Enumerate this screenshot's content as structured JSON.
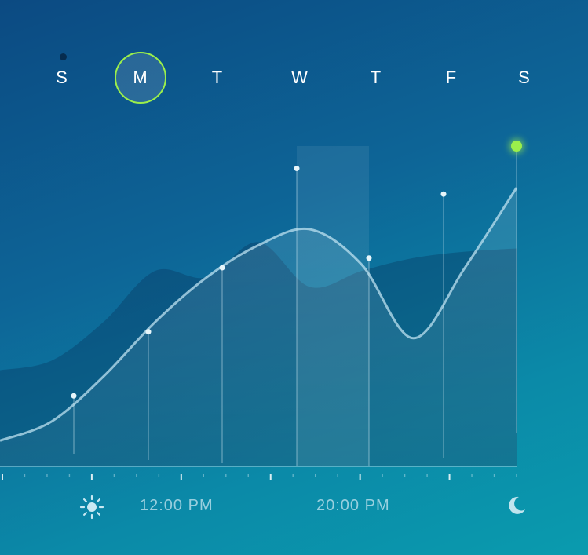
{
  "week": {
    "days": [
      {
        "label": "S",
        "selected": false,
        "has_indicator": true
      },
      {
        "label": "M",
        "selected": true,
        "has_indicator": false
      },
      {
        "label": "T",
        "selected": false,
        "has_indicator": false
      },
      {
        "label": "W",
        "selected": false,
        "has_indicator": false
      },
      {
        "label": "T",
        "selected": false,
        "has_indicator": false
      },
      {
        "label": "F",
        "selected": false,
        "has_indicator": false
      },
      {
        "label": "S",
        "selected": false,
        "has_indicator": false
      }
    ]
  },
  "timeline": {
    "labels": [
      "12:00 PM",
      "20:00 PM"
    ],
    "start_icon": "sun-icon",
    "end_icon": "moon-icon"
  },
  "colors": {
    "accent": "#9bef4b",
    "indicator_dot": "#062c4f"
  },
  "chart_data": {
    "type": "area",
    "title": "",
    "xlabel": "",
    "ylabel": "",
    "series": [
      {
        "values": [
          0.08,
          0.14,
          0.28,
          0.45,
          0.59,
          0.69,
          0.74,
          0.63,
          0.4,
          0.62,
          0.87
        ]
      },
      {
        "values": [
          0.3,
          0.33,
          0.45,
          0.61,
          0.59,
          0.7,
          0.56,
          0.61,
          0.65,
          0.67,
          0.68
        ]
      }
    ],
    "markers": [
      {
        "index": 1,
        "value": 0.22
      },
      {
        "index": 2,
        "value": 0.42
      },
      {
        "index": 3,
        "value": 0.62
      },
      {
        "index": 4,
        "value": 0.93
      },
      {
        "index": 5,
        "value": 0.65
      },
      {
        "index": 6,
        "value": 0.85
      },
      {
        "index": 7,
        "value": 1.0,
        "highlight": true
      }
    ],
    "highlighted_range": [
      4,
      5
    ]
  }
}
